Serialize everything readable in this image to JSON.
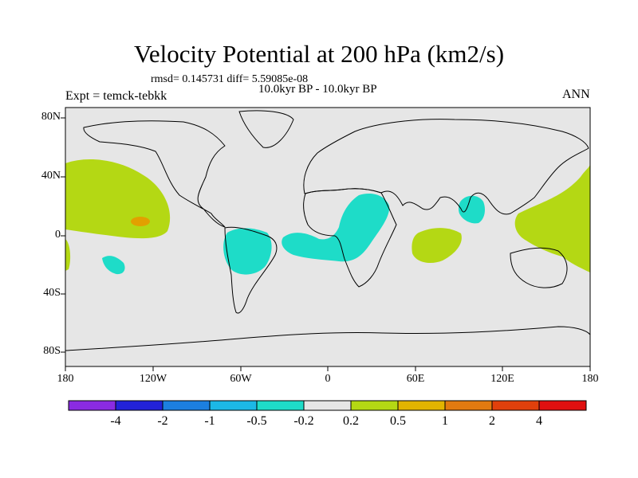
{
  "title": "Velocity Potential at 200 hPa (km2/s)",
  "stats": "rmsd= 0.145731 diff= 5.59085e-08",
  "period": "10.0kyr BP - 10.0kyr BP",
  "experiment": "Expt = temck-tebkk",
  "season": "ANN",
  "y_ticks": [
    "80N",
    "40N",
    "0",
    "40S",
    "80S"
  ],
  "x_ticks": [
    "180",
    "120W",
    "60W",
    "0",
    "60E",
    "120E",
    "180"
  ],
  "colorbar": {
    "colors": [
      "#8a2be2",
      "#2222d8",
      "#1c7fe0",
      "#1cb8e6",
      "#1edcc8",
      "#e6e6e6",
      "#b4d814",
      "#e2b400",
      "#e27a10",
      "#e0400c",
      "#e01010"
    ],
    "labels": [
      "-4",
      "-2",
      "-1",
      "-0.5",
      "-0.2",
      "0.2",
      "0.5",
      "1",
      "2",
      "4"
    ]
  },
  "colors": {
    "ocean": "#e6e6e6",
    "positive": "#b4d814",
    "strong_positive": "#e2a000",
    "negative": "#1edcc8"
  }
}
